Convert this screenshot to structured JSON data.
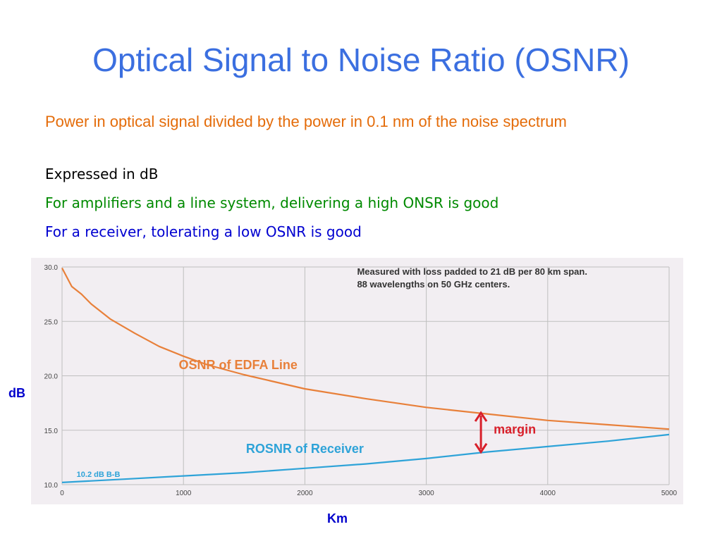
{
  "slide": {
    "title": "Optical Signal to Noise Ratio (OSNR)",
    "bullets": [
      "Power in optical signal divided by the power in 0.1 nm of the noise spectrum",
      "Expressed in dB",
      "For amplifiers and a line system, delivering a high ONSR is good",
      "For a receiver, tolerating a low OSNR is good"
    ],
    "ylabel": "dB",
    "xlabel": "Km"
  },
  "chart_data": {
    "type": "line",
    "xlim": [
      0,
      5000
    ],
    "ylim": [
      10,
      30
    ],
    "x_ticks": [
      0,
      1000,
      2000,
      3000,
      4000,
      5000
    ],
    "x_tick_labels": [
      "0",
      "1000",
      "2000",
      "3000",
      "4000",
      "5000"
    ],
    "y_ticks": [
      10,
      15,
      20,
      25,
      30
    ],
    "y_tick_labels": [
      "10.0",
      "15.0",
      "20.0",
      "25.0",
      "30.0"
    ],
    "grid": true,
    "annotation_lines": [
      "Measured with loss padded to 21 dB per 80 km span.",
      "88 wavelengths on 50 GHz centers."
    ],
    "margin_label": "margin",
    "margin_at_x": 3450,
    "bb_label": "10.2 dB B-B",
    "colors": {
      "osnr": "#e8803a",
      "rosnr": "#2ea3d8",
      "margin": "#d81f2a",
      "grid": "#bfbfbf"
    },
    "series": [
      {
        "name": "OSNR of EDFA Line",
        "x": [
          0,
          80,
          160,
          240,
          400,
          600,
          800,
          1000,
          1200,
          1500,
          2000,
          2500,
          3000,
          3500,
          4000,
          4500,
          5000
        ],
        "values": [
          29.9,
          28.2,
          27.5,
          26.6,
          25.2,
          23.9,
          22.7,
          21.8,
          21.0,
          20.1,
          18.8,
          17.9,
          17.1,
          16.5,
          15.9,
          15.5,
          15.1
        ]
      },
      {
        "name": "ROSNR of Receiver",
        "x": [
          0,
          500,
          1000,
          1500,
          2000,
          2500,
          3000,
          3500,
          4000,
          4500,
          5000
        ],
        "values": [
          10.2,
          10.5,
          10.8,
          11.1,
          11.5,
          11.9,
          12.4,
          13.0,
          13.5,
          14.0,
          14.6
        ]
      }
    ]
  }
}
